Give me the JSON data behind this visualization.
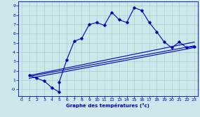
{
  "xlabel": "Graphe des températures (°c)",
  "bg_color": "#cce8ea",
  "line_color": "#0000bb",
  "grid_color": "#aacccc",
  "xlim": [
    -0.5,
    23.5
  ],
  "ylim": [
    -0.7,
    9.5
  ],
  "xticks": [
    0,
    1,
    2,
    3,
    4,
    5,
    6,
    7,
    8,
    9,
    10,
    11,
    12,
    13,
    14,
    15,
    16,
    17,
    18,
    19,
    20,
    21,
    22,
    23
  ],
  "ytick_vals": [
    0,
    1,
    2,
    3,
    4,
    5,
    6,
    7,
    8,
    9
  ],
  "ytick_labels": [
    "-0",
    "1",
    "2",
    "3",
    "4",
    "5",
    "6",
    "7",
    "8",
    "9"
  ],
  "line1_x": [
    1,
    2,
    3,
    4,
    5,
    5,
    6,
    7,
    8,
    9,
    10,
    11,
    12,
    13,
    14,
    15,
    16,
    17,
    18,
    19,
    20,
    21,
    22,
    23
  ],
  "line1_y": [
    1.5,
    1.2,
    0.9,
    0.2,
    -0.3,
    0.8,
    3.2,
    5.2,
    5.5,
    7.0,
    7.2,
    6.9,
    8.3,
    7.5,
    7.2,
    8.8,
    8.5,
    7.2,
    6.2,
    5.1,
    4.5,
    5.1,
    4.5,
    4.6
  ],
  "line2_x": [
    1,
    23
  ],
  "line2_y": [
    1.5,
    5.1
  ],
  "line3_x": [
    1,
    23
  ],
  "line3_y": [
    1.4,
    4.7
  ],
  "line4_x": [
    1,
    23
  ],
  "line4_y": [
    1.2,
    4.5
  ]
}
